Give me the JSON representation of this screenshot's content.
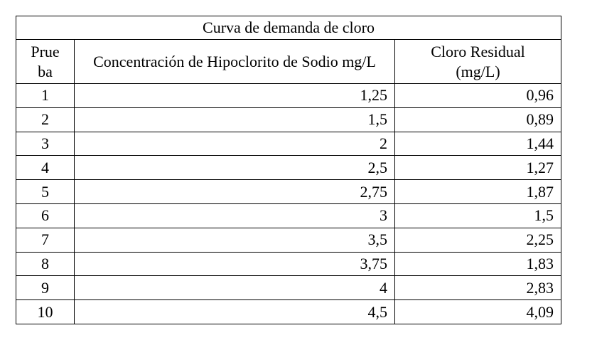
{
  "table": {
    "title": "Curva de demanda de cloro",
    "headers": [
      "Prueba",
      "Concentración de Hipoclorito de Sodio mg/L",
      "Cloro Residual (mg/L)"
    ],
    "rows": [
      [
        "1",
        "1,25",
        "0,96"
      ],
      [
        "2",
        "1,5",
        "0,89"
      ],
      [
        "3",
        "2",
        "1,44"
      ],
      [
        "4",
        "2,5",
        "1,27"
      ],
      [
        "5",
        "2,75",
        "1,87"
      ],
      [
        "6",
        "3",
        "1,5"
      ],
      [
        "7",
        "3,5",
        "2,25"
      ],
      [
        "8",
        "3,75",
        "1,83"
      ],
      [
        "9",
        "4",
        "2,83"
      ],
      [
        "10",
        "4,5",
        "4,09"
      ]
    ]
  }
}
